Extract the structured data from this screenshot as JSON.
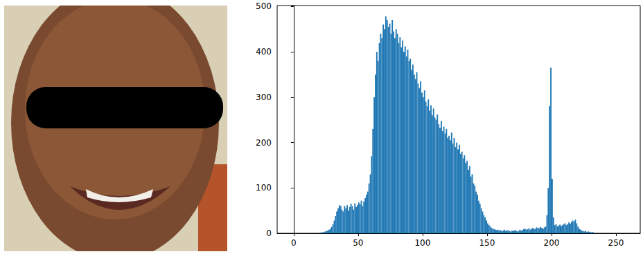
{
  "chart_data": {
    "type": "histogram",
    "color": "#1f77b4",
    "grid": false,
    "xlim": [
      -12.8,
      268.8
    ],
    "xticks": [
      0,
      50,
      100,
      150,
      200,
      250
    ],
    "ylim": [
      0,
      502
    ],
    "yticks": [
      0,
      100,
      200,
      300,
      400,
      500
    ],
    "bins": [
      0,
      1,
      2,
      3,
      4,
      5,
      6,
      7,
      8,
      9,
      10,
      11,
      12,
      13,
      14,
      15,
      16,
      17,
      18,
      19,
      20,
      21,
      22,
      23,
      24,
      25,
      26,
      27,
      28,
      29,
      30,
      31,
      32,
      33,
      34,
      35,
      36,
      37,
      38,
      39,
      40,
      41,
      42,
      43,
      44,
      45,
      46,
      47,
      48,
      49,
      50,
      51,
      52,
      53,
      54,
      55,
      56,
      57,
      58,
      59,
      60,
      61,
      62,
      63,
      64,
      65,
      66,
      67,
      68,
      69,
      70,
      71,
      72,
      73,
      74,
      75,
      76,
      77,
      78,
      79,
      80,
      81,
      82,
      83,
      84,
      85,
      86,
      87,
      88,
      89,
      90,
      91,
      92,
      93,
      94,
      95,
      96,
      97,
      98,
      99,
      100,
      101,
      102,
      103,
      104,
      105,
      106,
      107,
      108,
      109,
      110,
      111,
      112,
      113,
      114,
      115,
      116,
      117,
      118,
      119,
      120,
      121,
      122,
      123,
      124,
      125,
      126,
      127,
      128,
      129,
      130,
      131,
      132,
      133,
      134,
      135,
      136,
      137,
      138,
      139,
      140,
      141,
      142,
      143,
      144,
      145,
      146,
      147,
      148,
      149,
      150,
      151,
      152,
      153,
      154,
      155,
      156,
      157,
      158,
      159,
      160,
      161,
      162,
      163,
      164,
      165,
      166,
      167,
      168,
      169,
      170,
      171,
      172,
      173,
      174,
      175,
      176,
      177,
      178,
      179,
      180,
      181,
      182,
      183,
      184,
      185,
      186,
      187,
      188,
      189,
      190,
      191,
      192,
      193,
      194,
      195,
      196,
      197,
      198,
      199,
      200,
      201,
      202,
      203,
      204,
      205,
      206,
      207,
      208,
      209,
      210,
      211,
      212,
      213,
      214,
      215,
      216,
      217,
      218,
      219,
      220,
      221,
      222,
      223,
      224,
      225,
      226,
      227,
      228,
      229,
      230,
      231,
      232,
      233,
      234,
      235,
      236,
      237,
      238,
      239,
      240,
      241,
      242,
      243,
      244,
      245,
      246,
      247,
      248,
      249,
      250,
      251,
      252,
      253,
      254,
      255,
      256
    ],
    "values": [
      0,
      0,
      0,
      0,
      0,
      0,
      0,
      0,
      0,
      0,
      0,
      0,
      0,
      0,
      0,
      0,
      0,
      0,
      0,
      0,
      1,
      2,
      2,
      3,
      4,
      5,
      6,
      8,
      10,
      14,
      20,
      28,
      38,
      48,
      55,
      62,
      60,
      52,
      48,
      60,
      55,
      62,
      50,
      58,
      65,
      60,
      52,
      66,
      58,
      62,
      68,
      64,
      72,
      60,
      70,
      78,
      85,
      92,
      110,
      130,
      170,
      230,
      300,
      350,
      400,
      380,
      420,
      440,
      430,
      460,
      450,
      478,
      470,
      455,
      462,
      440,
      470,
      445,
      430,
      450,
      440,
      420,
      432,
      410,
      425,
      400,
      412,
      390,
      405,
      380,
      385,
      360,
      372,
      350,
      340,
      355,
      330,
      320,
      335,
      310,
      300,
      315,
      290,
      280,
      295,
      270,
      282,
      260,
      275,
      255,
      250,
      262,
      240,
      232,
      248,
      225,
      235,
      220,
      230,
      210,
      215,
      205,
      222,
      198,
      210,
      190,
      200,
      185,
      195,
      175,
      180,
      165,
      172,
      155,
      160,
      140,
      148,
      125,
      130,
      110,
      105,
      92,
      85,
      72,
      65,
      55,
      48,
      40,
      35,
      28,
      22,
      18,
      15,
      12,
      10,
      9,
      8,
      7,
      8,
      6,
      7,
      5,
      6,
      8,
      5,
      7,
      6,
      5,
      4,
      6,
      5,
      7,
      6,
      4,
      5,
      8,
      6,
      7,
      9,
      10,
      8,
      9,
      11,
      8,
      10,
      12,
      9,
      10,
      13,
      12,
      11,
      14,
      12,
      10,
      13,
      15,
      40,
      100,
      280,
      365,
      120,
      35,
      18,
      20,
      15,
      17,
      19,
      16,
      18,
      20,
      22,
      18,
      20,
      24,
      21,
      25,
      28,
      26,
      30,
      22,
      15,
      10,
      8,
      6,
      5,
      4,
      5,
      3,
      4,
      3,
      2,
      3,
      2,
      1,
      0,
      0,
      0,
      0,
      0,
      0,
      0,
      0,
      0,
      0,
      0,
      0,
      0,
      0,
      0,
      0,
      0,
      0,
      0,
      0,
      0,
      0
    ]
  }
}
